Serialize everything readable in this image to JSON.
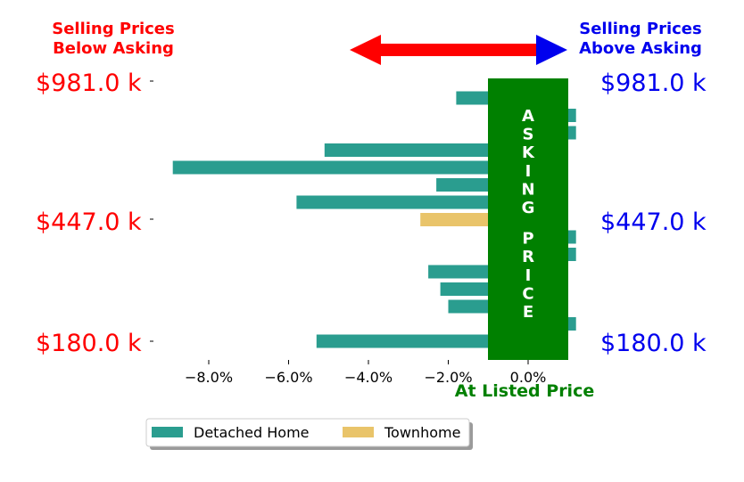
{
  "header": {
    "left_line1": "Selling Prices",
    "left_line2": "Below Asking",
    "right_line1": "Selling Prices",
    "right_line2": "Above Asking"
  },
  "colors": {
    "below": "#ff0000",
    "above": "#0000ee",
    "asking": "#008000",
    "detached": "#2a9d8f",
    "townhome": "#e9c46a"
  },
  "price_labels": {
    "top": "$981.0 k",
    "mid": "$447.0 k",
    "bottom": "$180.0 k"
  },
  "asking_band_label": "ASKING PRICE",
  "xlabel": "At Listed Price",
  "legend": {
    "detached": "Detached Home",
    "townhome": "Townhome"
  },
  "chart_data": {
    "type": "bar",
    "orientation": "horizontal",
    "x_unit": "percent",
    "xlim": [
      -9.5,
      1.2
    ],
    "xticks": [
      "−8.0%",
      "−6.0%",
      "−4.0%",
      "−2.0%",
      "0.0%"
    ],
    "series": [
      {
        "name": "Detached Home",
        "values": [
          -1.8,
          1.2,
          1.2,
          -5.1,
          -8.9,
          -2.3,
          -5.8,
          null,
          1.2,
          1.2,
          -2.5,
          -2.2,
          -2.0,
          1.2,
          -5.3
        ]
      },
      {
        "name": "Townhome",
        "values": [
          null,
          null,
          null,
          null,
          null,
          null,
          null,
          -2.7,
          null,
          null,
          null,
          null,
          null,
          null,
          null
        ]
      }
    ],
    "price_levels": [
      "$981.0 k",
      "$447.0 k",
      "$180.0 k"
    ],
    "legend_position": "bottom-left"
  }
}
